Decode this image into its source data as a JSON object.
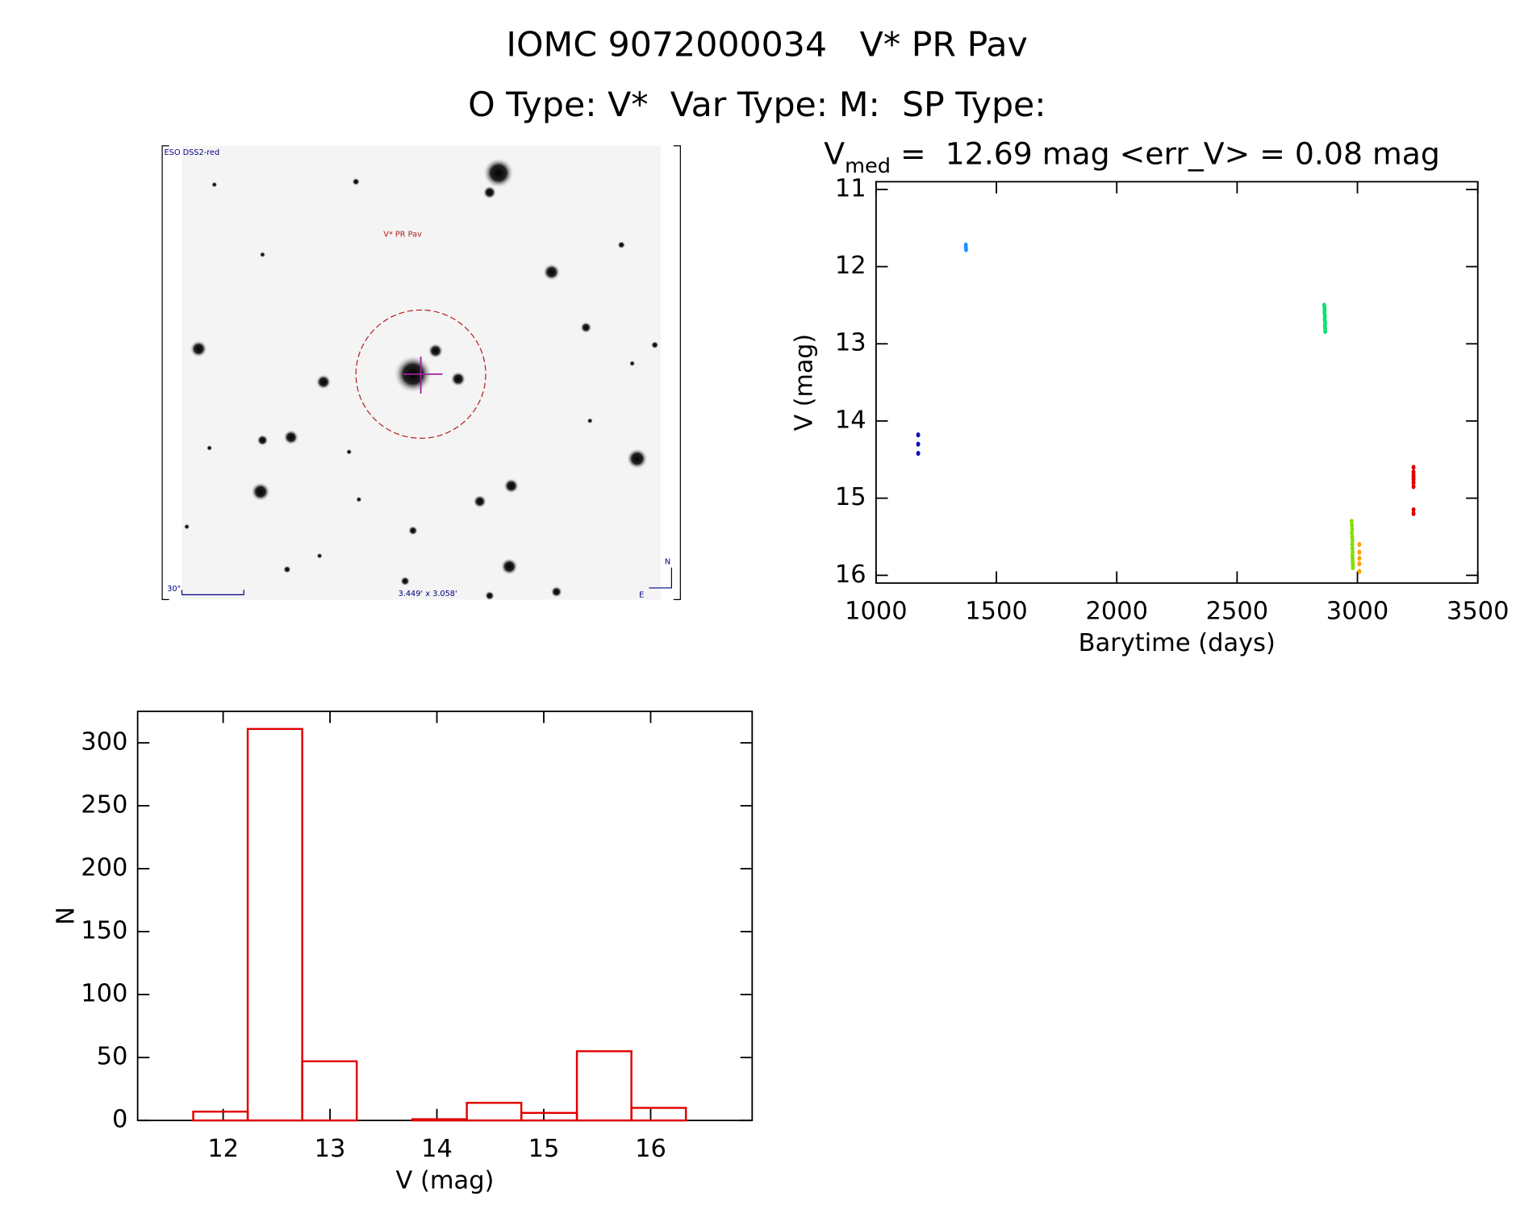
{
  "header": {
    "title": "IOMC 9072000034   V* PR Pav",
    "subtitle": "O Type: V*  Var Type: M:  SP Type:"
  },
  "image": {
    "survey": "ESO DSS2-red",
    "target": "V* PR Pav",
    "scale": "30\"",
    "size": "3.449' x 3.058'",
    "north": "N",
    "east": "E"
  },
  "chart_data": [
    {
      "type": "scatter",
      "title": "V",
      "title_subscript": "med",
      "title_rest": " =  12.69 mag <err_V> = 0.08 mag",
      "x_label": "Barytime (days)",
      "y_label": "V (mag)",
      "xlim": [
        1000,
        3500
      ],
      "ylim": [
        10.9,
        16.1
      ],
      "y_inverted": true,
      "xticks": [
        1000,
        1500,
        2000,
        2500,
        3000,
        3500
      ],
      "yticks": [
        11,
        12,
        13,
        14,
        15,
        16
      ],
      "series": [
        {
          "color": "#1010b0",
          "x": [
            1175,
            1175,
            1175
          ],
          "values": [
            14.18,
            14.3,
            14.42
          ]
        },
        {
          "color": "#1e90ff",
          "x": [
            1373,
            1373,
            1374
          ],
          "values": [
            11.72,
            11.75,
            11.78
          ]
        },
        {
          "color": "#10e070",
          "x": [
            2862,
            2863,
            2864,
            2863,
            2864,
            2865,
            2864,
            2865,
            2866,
            2865,
            2866,
            2866
          ],
          "values": [
            12.5,
            12.53,
            12.56,
            12.59,
            12.62,
            12.65,
            12.68,
            12.71,
            12.74,
            12.77,
            12.8,
            12.84
          ]
        },
        {
          "color": "#80e000",
          "x": [
            2976,
            2977,
            2978,
            2977,
            2978,
            2979,
            2978,
            2979,
            2980,
            2979,
            2980,
            2980,
            2981,
            2981
          ],
          "values": [
            15.3,
            15.35,
            15.4,
            15.45,
            15.5,
            15.55,
            15.6,
            15.65,
            15.7,
            15.74,
            15.78,
            15.82,
            15.86,
            15.9
          ]
        },
        {
          "color": "#ffa000",
          "x": [
            3008,
            3008,
            3008,
            3008,
            3008
          ],
          "values": [
            15.6,
            15.7,
            15.78,
            15.85,
            15.95
          ]
        },
        {
          "color": "#e00000",
          "x": [
            3233,
            3233,
            3233,
            3233,
            3233,
            3233,
            3233,
            3233,
            3233
          ],
          "values": [
            14.6,
            14.66,
            14.7,
            14.73,
            14.76,
            14.8,
            14.85,
            15.15,
            15.2
          ]
        }
      ]
    },
    {
      "type": "histogram",
      "x_label": "V (mag)",
      "y_label": "N",
      "color": "#e00000",
      "bins": [
        11.72,
        12.23,
        12.74,
        13.25,
        13.77,
        14.28,
        14.79,
        15.31,
        15.82,
        16.33
      ],
      "values": [
        7,
        311,
        47,
        0,
        1,
        14,
        6,
        55,
        10
      ],
      "xlim": [
        11.2,
        16.95
      ],
      "ylim": [
        0,
        325
      ],
      "xticks": [
        12,
        13,
        14,
        15,
        16
      ],
      "yticks": [
        0,
        50,
        100,
        150,
        200,
        250,
        300
      ]
    }
  ]
}
